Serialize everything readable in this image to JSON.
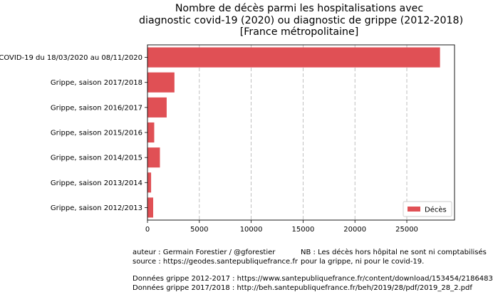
{
  "chart_data": {
    "type": "bar",
    "orientation": "horizontal",
    "title_lines": [
      "Nombre de décès parmi les hospitalisations avec",
      "diagnostic covid-19 (2020) ou diagnostic de grippe (2012-2018)",
      "[France métropolitaine]"
    ],
    "categories": [
      "COVID-19 du 18/03/2020 au 08/11/2020",
      "Grippe, saison 2017/2018",
      "Grippe, saison 2016/2017",
      "Grippe, saison 2015/2016",
      "Grippe, saison 2014/2015",
      "Grippe, saison 2013/2014",
      "Grippe, saison 2012/2013"
    ],
    "series": [
      {
        "name": "Décès",
        "color": "#e05055",
        "values": [
          28200,
          2600,
          1850,
          650,
          1200,
          350,
          550
        ]
      }
    ],
    "xticks": [
      "0",
      "5000",
      "10000",
      "15000",
      "20000",
      "25000"
    ],
    "xlim": [
      0,
      29600
    ],
    "grid": "vertical-dashed",
    "legend_position": "lower-right"
  },
  "notes": {
    "author": "auteur : Germain Forestier / @gforestier",
    "source": "source : https://geodes.santepubliquefrance.fr",
    "nb_line1": "NB : Les décès hors hôpital ne sont ni comptabilisés",
    "nb_line2": "pour la grippe, ni pour le covid-19.",
    "data_line1": "Données grippe 2012-2017 : https://www.santepubliquefrance.fr/content/download/153454/2186483",
    "data_line2": "Données grippe 2017/2018 : http://beh.santepubliquefrance.fr/beh/2019/28/pdf/2019_28_2.pdf"
  }
}
